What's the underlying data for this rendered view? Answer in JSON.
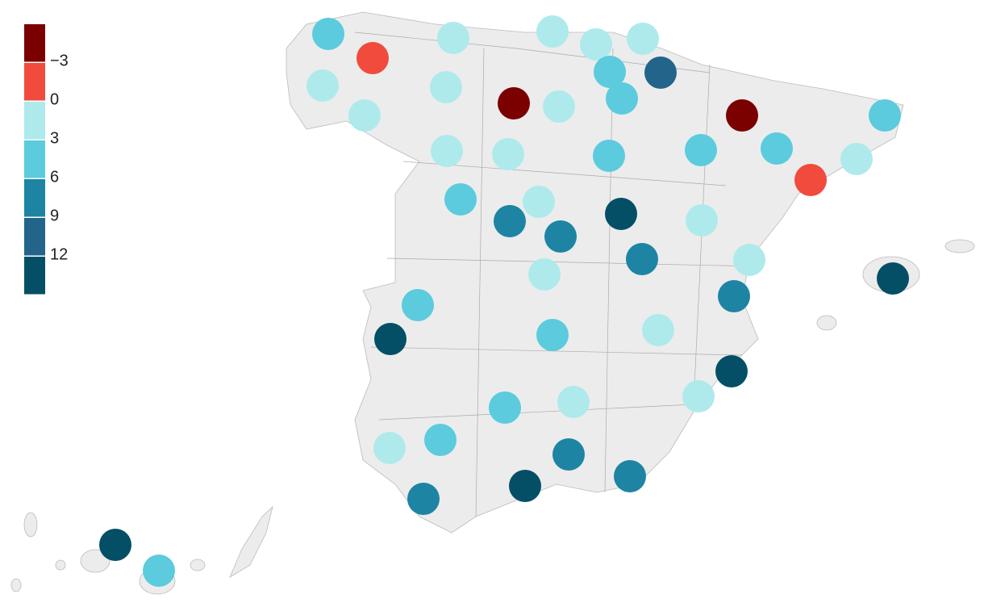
{
  "legend": {
    "colors": [
      "#7b0000",
      "#f04b3c",
      "#aeeaec",
      "#5bcbdd",
      "#1e84a3",
      "#23648a",
      "#044f66"
    ],
    "ticks": [
      {
        "value": -3,
        "label": "−3"
      },
      0,
      3,
      6,
      9,
      12
    ]
  },
  "points": [
    {
      "color": "#5bcbdd"
    },
    {
      "color": "#f04b3c"
    },
    {
      "color": "#aeeaec"
    },
    {
      "color": "#aeeaec"
    },
    {
      "color": "#aeeaec"
    },
    {
      "color": "#aeeaec"
    },
    {
      "color": "#aeeaec"
    },
    {
      "color": "#aeeaec"
    },
    {
      "color": "#5bcbdd"
    },
    {
      "color": "#23648a"
    },
    {
      "color": "#7b0000"
    },
    {
      "color": "#aeeaec"
    },
    {
      "color": "#5bcbdd"
    },
    {
      "color": "#aeeaec"
    },
    {
      "color": "#7b0000"
    },
    {
      "color": "#5bcbdd"
    },
    {
      "color": "#aeeaec"
    },
    {
      "color": "#aeeaec"
    },
    {
      "color": "#5bcbdd"
    },
    {
      "color": "#5bcbdd"
    },
    {
      "color": "#5bcbdd"
    },
    {
      "color": "#aeeaec"
    },
    {
      "color": "#f04b3c"
    },
    {
      "color": "#5bcbdd"
    },
    {
      "color": "#aeeaec"
    },
    {
      "color": "#1e84a3"
    },
    {
      "color": "#044f66"
    },
    {
      "color": "#1e84a3"
    },
    {
      "color": "#aeeaec"
    },
    {
      "color": "#1e84a3"
    },
    {
      "color": "#aeeaec"
    },
    {
      "color": "#aeeaec"
    },
    {
      "color": "#044f66"
    },
    {
      "color": "#1e84a3"
    },
    {
      "color": "#5bcbdd"
    },
    {
      "color": "#044f66"
    },
    {
      "color": "#5bcbdd"
    },
    {
      "color": "#aeeaec"
    },
    {
      "color": "#044f66"
    },
    {
      "color": "#aeeaec"
    },
    {
      "color": "#5bcbdd"
    },
    {
      "color": "#aeeaec"
    },
    {
      "color": "#5bcbdd"
    },
    {
      "color": "#aeeaec"
    },
    {
      "color": "#1e84a3"
    },
    {
      "color": "#044f66"
    },
    {
      "color": "#1e84a3"
    },
    {
      "color": "#1e84a3"
    },
    {
      "color": "#044f66"
    },
    {
      "color": "#5bcbdd"
    }
  ]
}
